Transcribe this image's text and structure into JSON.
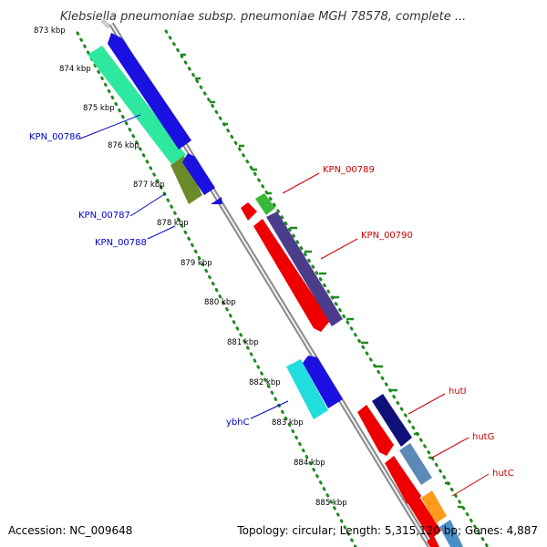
{
  "title": "Klebsiella pneumoniae subsp. pneumoniae MGH 78578, complete ...",
  "footer": {
    "accession": "Accession: NC_009648",
    "summary": "Topology: circular; Length: 5,315,120 bp; Genes: 4,887"
  },
  "ticks": [
    "873 kbp",
    "874 kbp",
    "875 kbp",
    "876 kbp",
    "877 kbp",
    "878 kbp",
    "879 kbp",
    "880 kbp",
    "881 kbp",
    "882 kbp",
    "883 kbp",
    "884 kbp",
    "885 kbp"
  ],
  "genes_left": [
    {
      "name": "KPN_00786",
      "color": "#0000cc"
    },
    {
      "name": "KPN_00787",
      "color": "#0000cc"
    },
    {
      "name": "KPN_00788",
      "color": "#0000cc"
    },
    {
      "name": "ybhC",
      "color": "#0000cc"
    }
  ],
  "genes_right": [
    {
      "name": "KPN_00789",
      "color": "#cc0000"
    },
    {
      "name": "KPN_00790",
      "color": "#cc0000"
    },
    {
      "name": "hutI",
      "color": "#cc0000"
    },
    {
      "name": "hutG",
      "color": "#cc0000"
    },
    {
      "name": "hutC",
      "color": "#cc0000"
    }
  ],
  "colors": {
    "backbone": "#8a8a8a",
    "ruler_dots": "#1f8a1f",
    "forward_strand": "#0000ee",
    "reverse_strand": "#ee0000"
  }
}
